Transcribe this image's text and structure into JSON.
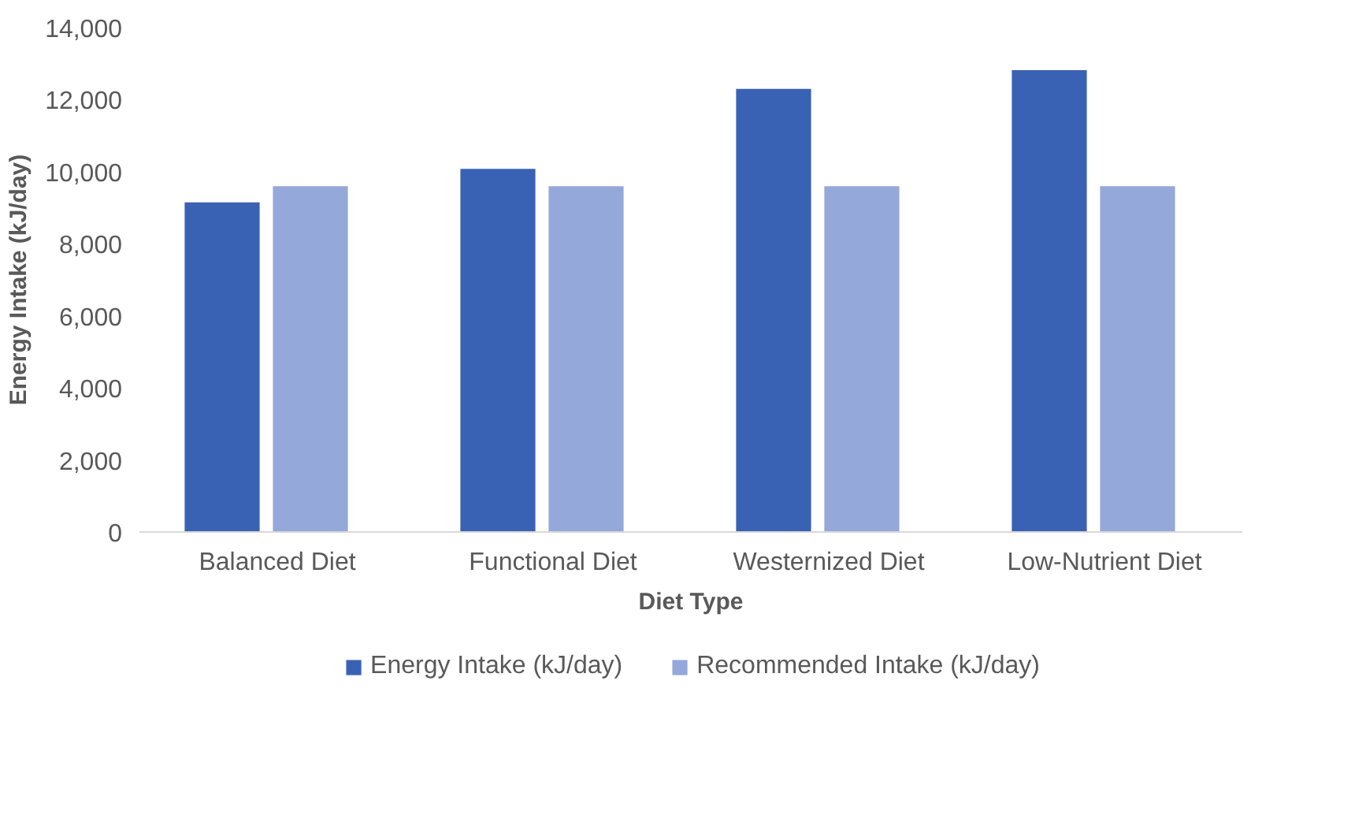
{
  "chart_data": {
    "type": "bar",
    "categories": [
      "Balanced Diet",
      "Functional Diet",
      "Westernized Diet",
      "Low-Nutrient Diet"
    ],
    "series": [
      {
        "name": "Energy Intake (kJ/day)",
        "color": "#3a62b4",
        "values": [
          9150,
          10080,
          12300,
          12820
        ]
      },
      {
        "name": "Recommended Intake (kJ/day)",
        "color": "#94a8da",
        "values": [
          9600,
          9600,
          9600,
          9600
        ]
      }
    ],
    "xlabel": "Diet Type",
    "ylabel": "Energy Intake (kJ/day)",
    "ylim": [
      0,
      14000
    ],
    "yticks": [
      0,
      {
        "value": 2000,
        "label": "2,000"
      },
      {
        "value": 4000,
        "label": "4,000"
      },
      {
        "value": 6000,
        "label": "6,000"
      },
      {
        "value": 8000,
        "label": "8,000"
      },
      {
        "value": 10000,
        "label": "10,000"
      },
      {
        "value": 12000,
        "label": "12,000"
      },
      {
        "value": 14000,
        "label": "14,000"
      }
    ],
    "grid": false,
    "legend": "bottom"
  }
}
